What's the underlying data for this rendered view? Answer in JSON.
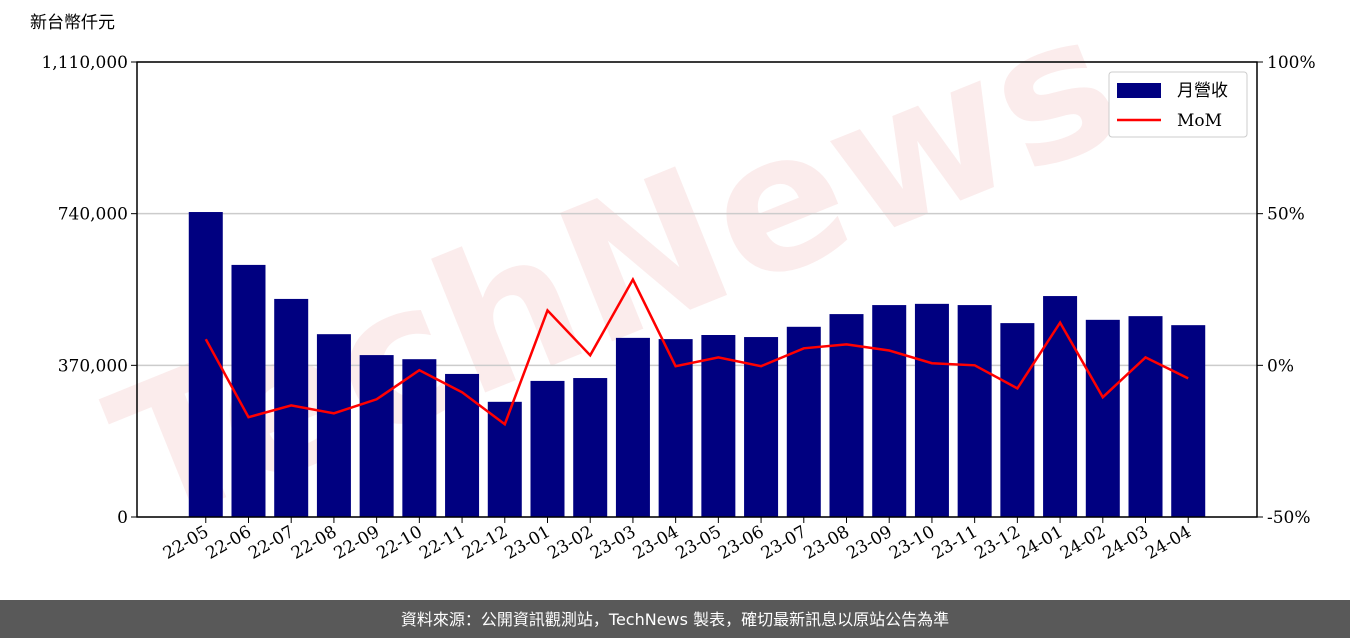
{
  "chart_data": {
    "type": "bar_line",
    "y_label": "新台幣仟元",
    "categories": [
      "22-05",
      "22-06",
      "22-07",
      "22-08",
      "22-09",
      "22-10",
      "22-11",
      "22-12",
      "23-01",
      "23-02",
      "23-03",
      "23-04",
      "23-05",
      "23-06",
      "23-07",
      "23-08",
      "23-09",
      "23-10",
      "23-11",
      "23-12",
      "24-01",
      "24-02",
      "24-03",
      "24-04"
    ],
    "series": [
      {
        "name": "月營收",
        "color": "#000080",
        "type": "bar",
        "values": [
          744000,
          615000,
          532000,
          446000,
          395000,
          385000,
          349000,
          281000,
          332000,
          339000,
          437000,
          434000,
          444000,
          439000,
          464000,
          495000,
          517000,
          520000,
          517000,
          473000,
          539000,
          481000,
          490000,
          468000
        ]
      },
      {
        "name": "MoM",
        "color": "#ff0000",
        "type": "line",
        "axis": "y2",
        "values": [
          8.6,
          -17.1,
          -13.2,
          -15.8,
          -11.2,
          -1.6,
          -8.9,
          -19.4,
          18.1,
          3.3,
          28.3,
          -0.3,
          2.6,
          -0.3,
          5.6,
          6.9,
          4.9,
          0.7,
          0,
          -7.6,
          14.1,
          -10.5,
          2.6,
          -4.3
        ]
      }
    ],
    "ylim": [
      0,
      1110000
    ],
    "yticks": [
      0,
      {
        "value": 370000,
        "label": "370,000"
      },
      {
        "value": 740000,
        "label": "740,000"
      },
      {
        "value": 1110000,
        "label": "1,110,000"
      }
    ],
    "y2lim": [
      -50,
      100
    ],
    "y2ticks": [
      {
        "value": -50,
        "label": "-50%"
      },
      {
        "value": 0,
        "label": "0%"
      },
      {
        "value": 50,
        "label": "50%"
      },
      {
        "value": 100,
        "label": "100%"
      }
    ],
    "grid": true,
    "legend": "upper right",
    "watermark": "TechNews",
    "footer": "資料來源：公開資訊觀測站，TechNews 製表，確切最新訊息以原站公告為準"
  }
}
